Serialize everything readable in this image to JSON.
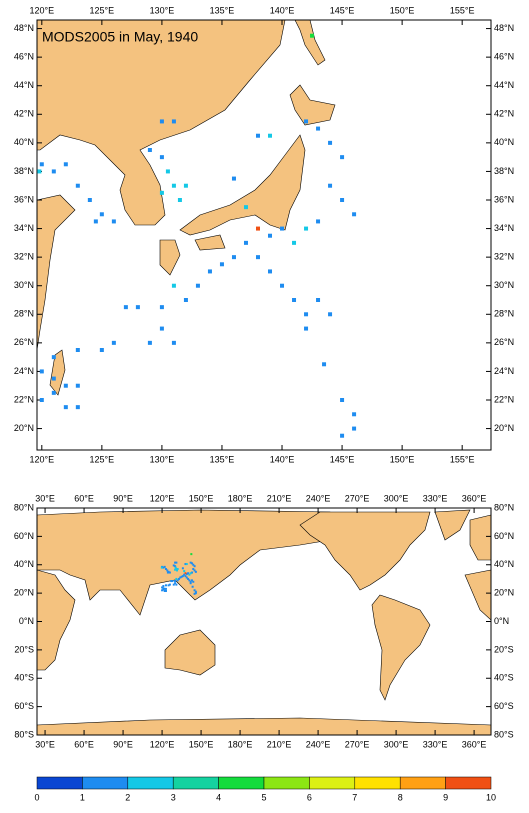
{
  "chart_data": [
    {
      "type": "map",
      "title": "MODS2005 in May, 1940",
      "xlim": [
        119.6,
        157.4
      ],
      "ylim": [
        18.5,
        48.6
      ],
      "xticks": [
        {
          "value": 120,
          "label": "120°E"
        },
        {
          "value": 125,
          "label": "125°E"
        },
        {
          "value": 130,
          "label": "130°E"
        },
        {
          "value": 135,
          "label": "135°E"
        },
        {
          "value": 140,
          "label": "140°E"
        },
        {
          "value": 145,
          "label": "145°E"
        },
        {
          "value": 150,
          "label": "150°E"
        },
        {
          "value": 155,
          "label": "155°E"
        }
      ],
      "yticks": [
        {
          "value": 20,
          "label": "20°N"
        },
        {
          "value": 22,
          "label": "22°N"
        },
        {
          "value": 24,
          "label": "24°N"
        },
        {
          "value": 26,
          "label": "26°N"
        },
        {
          "value": 28,
          "label": "28°N"
        },
        {
          "value": 30,
          "label": "30°N"
        },
        {
          "value": 32,
          "label": "32°N"
        },
        {
          "value": 34,
          "label": "34°N"
        },
        {
          "value": 36,
          "label": "36°N"
        },
        {
          "value": 38,
          "label": "38°N"
        },
        {
          "value": 40,
          "label": "40°N"
        },
        {
          "value": 42,
          "label": "42°N"
        },
        {
          "value": 44,
          "label": "44°N"
        },
        {
          "value": 46,
          "label": "46°N"
        },
        {
          "value": 48,
          "label": "48°N"
        }
      ],
      "x": [
        120,
        121,
        122,
        123,
        124,
        125,
        126,
        124.5,
        119.8,
        130,
        131,
        129,
        130,
        130.5,
        131,
        132,
        130,
        131.5,
        138,
        139,
        136,
        137,
        142,
        143,
        144,
        145,
        144,
        145,
        146,
        143,
        142,
        141,
        140,
        139,
        138,
        137,
        136,
        135,
        134,
        138,
        139,
        140,
        141,
        142,
        143,
        144,
        142,
        133,
        132,
        131,
        130,
        128,
        127,
        130,
        129,
        131,
        126,
        125,
        123,
        121,
        120,
        121,
        122,
        123,
        121,
        120,
        122,
        123,
        145,
        146,
        146,
        145,
        143.5,
        142.5
      ],
      "y": [
        38.5,
        38,
        38.5,
        37,
        36,
        35,
        34.5,
        34.5,
        38,
        41.5,
        41.5,
        39.5,
        39,
        38,
        37,
        37,
        36.5,
        36,
        40.5,
        40.5,
        37.5,
        35.5,
        41.5,
        41,
        40,
        39,
        37,
        36,
        35,
        34.5,
        34,
        33,
        34,
        33.5,
        34,
        33,
        32,
        31.5,
        31,
        32,
        31,
        30,
        29,
        28,
        29,
        28,
        27,
        30,
        29,
        30,
        28.5,
        28.5,
        28.5,
        27,
        26,
        26,
        26,
        25.5,
        25.5,
        25,
        24,
        23.5,
        23,
        23,
        22.5,
        22,
        21.5,
        21.5,
        22,
        21,
        20,
        19.5,
        24.5,
        47.5
      ],
      "values": [
        1.5,
        1.5,
        1.5,
        1.5,
        1.5,
        1.5,
        1.5,
        1.5,
        2.5,
        1.5,
        1.5,
        1.5,
        1.5,
        2.5,
        2.5,
        2.5,
        2.5,
        2.5,
        1.5,
        2.5,
        1.5,
        2.5,
        1.5,
        1.5,
        1.5,
        1.5,
        1.5,
        1.5,
        1.5,
        1.5,
        2.5,
        2.5,
        1.5,
        1.5,
        9.5,
        1.5,
        1.5,
        1.5,
        1.5,
        1.5,
        1.5,
        1.5,
        1.5,
        1.5,
        1.5,
        1.5,
        1.5,
        1.5,
        1.5,
        2.5,
        1.5,
        1.5,
        1.5,
        1.5,
        1.5,
        1.5,
        1.5,
        1.5,
        1.5,
        1.5,
        1.5,
        1.5,
        1.5,
        1.5,
        1.5,
        1.5,
        1.5,
        1.5,
        1.5,
        1.5,
        1.5,
        1.5,
        1.5,
        4.5
      ]
    },
    {
      "type": "map",
      "xlim": [
        23.8,
        373
      ],
      "ylim": [
        -80,
        80
      ],
      "xticks": [
        {
          "value": 30,
          "label": "30°E"
        },
        {
          "value": 60,
          "label": "60°E"
        },
        {
          "value": 90,
          "label": "90°E"
        },
        {
          "value": 120,
          "label": "120°E"
        },
        {
          "value": 150,
          "label": "150°E"
        },
        {
          "value": 180,
          "label": "180°E"
        },
        {
          "value": 210,
          "label": "210°E"
        },
        {
          "value": 240,
          "label": "240°E"
        },
        {
          "value": 270,
          "label": "270°E"
        },
        {
          "value": 300,
          "label": "300°E"
        },
        {
          "value": 330,
          "label": "330°E"
        },
        {
          "value": 360,
          "label": "360°E"
        }
      ],
      "yticks": [
        {
          "value": -80,
          "label": "80°S"
        },
        {
          "value": -60,
          "label": "60°S"
        },
        {
          "value": -40,
          "label": "40°S"
        },
        {
          "value": -20,
          "label": "20°S"
        },
        {
          "value": 0,
          "label": "0°N"
        },
        {
          "value": 20,
          "label": "20°N"
        },
        {
          "value": 40,
          "label": "40°N"
        },
        {
          "value": 60,
          "label": "60°N"
        },
        {
          "value": 80,
          "label": "80°N"
        }
      ]
    },
    {
      "type": "colorbar",
      "ticks": [
        0,
        1,
        2,
        3,
        4,
        5,
        6,
        7,
        8,
        9,
        10
      ],
      "colors": [
        "#0a46d2",
        "#1e8cf0",
        "#14c8e6",
        "#14d2a0",
        "#14dc3c",
        "#8ce614",
        "#dcf014",
        "#ffe100",
        "#ffa014",
        "#f05014"
      ]
    }
  ]
}
